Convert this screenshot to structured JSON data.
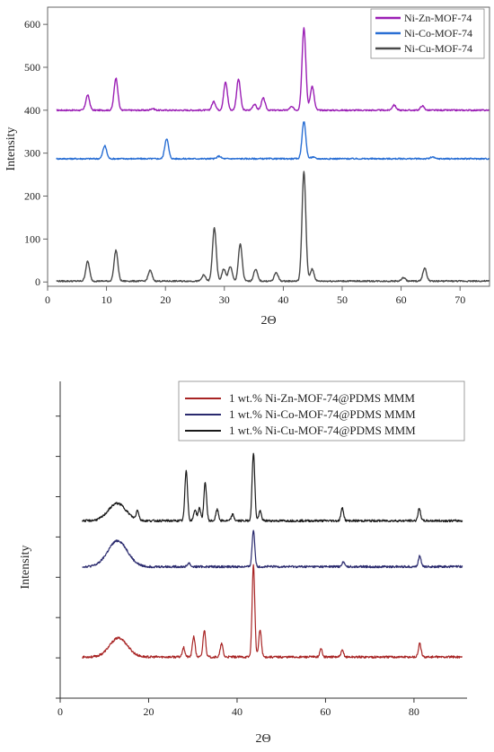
{
  "chart_data": [
    {
      "type": "line",
      "xlabel": "2Θ",
      "ylabel": "Intensity",
      "xlim": [
        0,
        75
      ],
      "ylim": [
        -10,
        640
      ],
      "x_ticks": [
        "0",
        "10",
        "20",
        "30",
        "40",
        "50",
        "60",
        "70"
      ],
      "y_ticks": [
        "0",
        "100",
        "200",
        "300",
        "400",
        "500",
        "600"
      ],
      "legend_position": "top-right",
      "series": [
        {
          "name": "Ni-Zn-MOF-74",
          "color": "#9b1fb5",
          "baseline": 400,
          "peaks": [
            [
              6.8,
              35
            ],
            [
              11.6,
              75
            ],
            [
              17.8,
              4
            ],
            [
              28.2,
              20
            ],
            [
              30.2,
              65
            ],
            [
              32.4,
              72
            ],
            [
              35.1,
              14
            ],
            [
              36.6,
              28
            ],
            [
              41.4,
              8
            ],
            [
              43.5,
              192
            ],
            [
              44.9,
              56
            ],
            [
              58.8,
              12
            ],
            [
              63.6,
              10
            ]
          ]
        },
        {
          "name": "Ni-Co-MOF-74",
          "color": "#2a6fd4",
          "baseline": 287,
          "peaks": [
            [
              9.7,
              30
            ],
            [
              20.2,
              47
            ],
            [
              29.1,
              6
            ],
            [
              43.5,
              87
            ],
            [
              45.0,
              4
            ],
            [
              65.3,
              4
            ]
          ]
        },
        {
          "name": "Ni-Cu-MOF-74",
          "color": "#4a4a4a",
          "baseline": 2,
          "peaks": [
            [
              6.8,
              46
            ],
            [
              11.6,
              72
            ],
            [
              17.4,
              25
            ],
            [
              26.5,
              14
            ],
            [
              28.3,
              123
            ],
            [
              29.9,
              28
            ],
            [
              31.0,
              34
            ],
            [
              32.7,
              86
            ],
            [
              35.3,
              28
            ],
            [
              38.8,
              20
            ],
            [
              43.5,
              255
            ],
            [
              44.9,
              28
            ],
            [
              60.4,
              8
            ],
            [
              64.0,
              30
            ]
          ]
        }
      ]
    },
    {
      "type": "line",
      "xlabel": "2Θ",
      "ylabel": "Intensity",
      "xlim": [
        0,
        92
      ],
      "ylim": [
        0,
        10
      ],
      "x_ticks": [
        "0",
        "20",
        "40",
        "60",
        "80"
      ],
      "y_ticks": [],
      "legend_position": "top-right",
      "series": [
        {
          "name": "1 wt.% Ni-Zn-MOF-74@PDMS MMM",
          "color": "#a82424",
          "baseline": 1.3,
          "hump": [
            13.2,
            2.0,
            0.6
          ],
          "peaks": [
            [
              27.9,
              0.3
            ],
            [
              30.2,
              0.65
            ],
            [
              32.6,
              0.85
            ],
            [
              36.5,
              0.42
            ],
            [
              43.7,
              2.9
            ],
            [
              45.2,
              0.85
            ],
            [
              59.0,
              0.25
            ],
            [
              63.8,
              0.2
            ],
            [
              81.3,
              0.42
            ]
          ]
        },
        {
          "name": "1 wt.% Ni-Co-MOF-74@PDMS MMM",
          "color": "#2a2a6e",
          "baseline": 4.15,
          "hump": [
            13.0,
            2.2,
            0.82
          ],
          "peaks": [
            [
              29.1,
              0.12
            ],
            [
              43.7,
              1.15
            ],
            [
              64.0,
              0.15
            ],
            [
              81.3,
              0.35
            ]
          ]
        },
        {
          "name": "1 wt.% Ni-Cu-MOF-74@PDMS MMM",
          "color": "#1a1a1a",
          "baseline": 5.6,
          "hump": [
            12.9,
            2.0,
            0.55
          ],
          "peaks": [
            [
              17.5,
              0.3
            ],
            [
              28.5,
              1.6
            ],
            [
              30.5,
              0.35
            ],
            [
              31.5,
              0.4
            ],
            [
              32.8,
              1.2
            ],
            [
              35.5,
              0.35
            ],
            [
              39.0,
              0.2
            ],
            [
              43.7,
              2.15
            ],
            [
              45.2,
              0.3
            ],
            [
              63.8,
              0.4
            ],
            [
              81.2,
              0.38
            ]
          ]
        }
      ]
    }
  ]
}
